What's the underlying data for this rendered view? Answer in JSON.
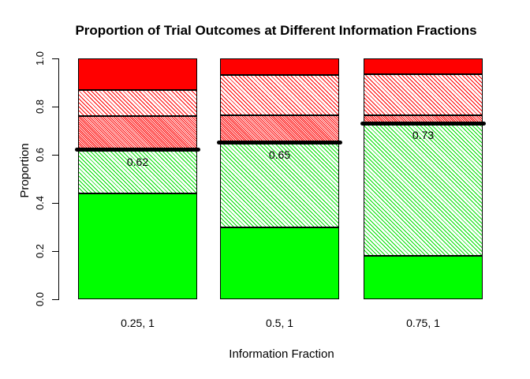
{
  "chart_data": {
    "type": "bar",
    "stacked": true,
    "title": "Proportion of Trial Outcomes at Different Information Fractions",
    "xlabel": "Information Fraction",
    "ylabel": "Proportion",
    "ylim": [
      0,
      1
    ],
    "grid": false,
    "legend": "none",
    "categories": [
      "0.25, 1",
      "0.5, 1",
      "0.75, 1"
    ],
    "yticks": [
      {
        "value": 0.0,
        "label": "0.0"
      },
      {
        "value": 0.2,
        "label": "0.2"
      },
      {
        "value": 0.4,
        "label": "0.4"
      },
      {
        "value": 0.6,
        "label": "0.6"
      },
      {
        "value": 0.8,
        "label": "0.8"
      },
      {
        "value": 1.0,
        "label": "1.0"
      }
    ],
    "series": [
      {
        "name": "solid-green",
        "pattern": "green-solid",
        "color": "#00ff00",
        "values": [
          0.44,
          0.3,
          0.18
        ]
      },
      {
        "name": "hatched-green",
        "pattern": "green-hatch",
        "color": "#00ff00",
        "values": [
          0.18,
          0.35,
          0.55
        ]
      },
      {
        "name": "dense-hatched-red",
        "pattern": "red-dense",
        "color": "#ff0000",
        "values": [
          0.14,
          0.115,
          0.035
        ]
      },
      {
        "name": "sparse-hatched-red",
        "pattern": "red-sparse",
        "color": "#ff0000",
        "values": [
          0.11,
          0.165,
          0.17
        ]
      },
      {
        "name": "solid-red",
        "pattern": "red-solid",
        "color": "#ff0000",
        "values": [
          0.13,
          0.07,
          0.065
        ]
      }
    ],
    "threshold": {
      "color": "#000000",
      "values": [
        0.62,
        0.65,
        0.73
      ],
      "labels": [
        "0.62",
        "0.65",
        "0.73"
      ]
    }
  }
}
